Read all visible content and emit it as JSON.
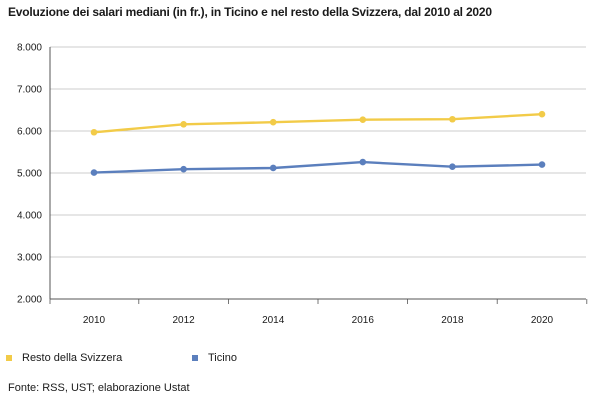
{
  "chart_data": {
    "type": "line",
    "title": "Evoluzione dei salari mediani (in fr.), in Ticino e nel resto della Svizzera, dal 2010 al 2020",
    "x": [
      2010,
      2012,
      2014,
      2016,
      2018,
      2020
    ],
    "x_tick_labels": [
      "2010",
      "2012",
      "2014",
      "2016",
      "2018",
      "2020"
    ],
    "ylim": [
      2000,
      8000
    ],
    "y_ticks": [
      2000,
      3000,
      4000,
      5000,
      6000,
      7000,
      8000
    ],
    "y_tick_labels": [
      "2.000",
      "3.000",
      "4.000",
      "5.000",
      "6.000",
      "7.000",
      "8.000"
    ],
    "grid": true,
    "legend_position": "bottom",
    "series": [
      {
        "name": "Resto della Svizzera",
        "color": "#f2cb48",
        "values": [
          5970,
          6160,
          6210,
          6270,
          6280,
          6400
        ]
      },
      {
        "name": "Ticino",
        "color": "#5b7fbd",
        "values": [
          5010,
          5090,
          5120,
          5260,
          5150,
          5200
        ]
      }
    ]
  },
  "source": "Fonte: RSS, UST; elaborazione Ustat"
}
